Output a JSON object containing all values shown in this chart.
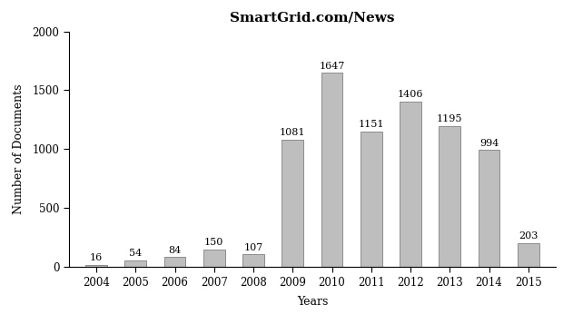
{
  "years": [
    "2004",
    "2005",
    "2006",
    "2007",
    "2008",
    "2009",
    "2010",
    "2011",
    "2012",
    "2013",
    "2014",
    "2015"
  ],
  "values": [
    16,
    54,
    84,
    150,
    107,
    1081,
    1647,
    1151,
    1406,
    1195,
    994,
    203
  ],
  "bar_color": "#bebebe",
  "bar_edgecolor": "#808080",
  "title": "SmartGrid.com/News",
  "xlabel": "Years",
  "ylabel": "Number of Documents",
  "ylim": [
    0,
    2000
  ],
  "yticks": [
    0,
    500,
    1000,
    1500,
    2000
  ],
  "title_fontsize": 11,
  "label_fontsize": 9,
  "tick_fontsize": 8.5,
  "annotation_fontsize": 8,
  "background_color": "#ffffff",
  "bar_width": 0.55
}
